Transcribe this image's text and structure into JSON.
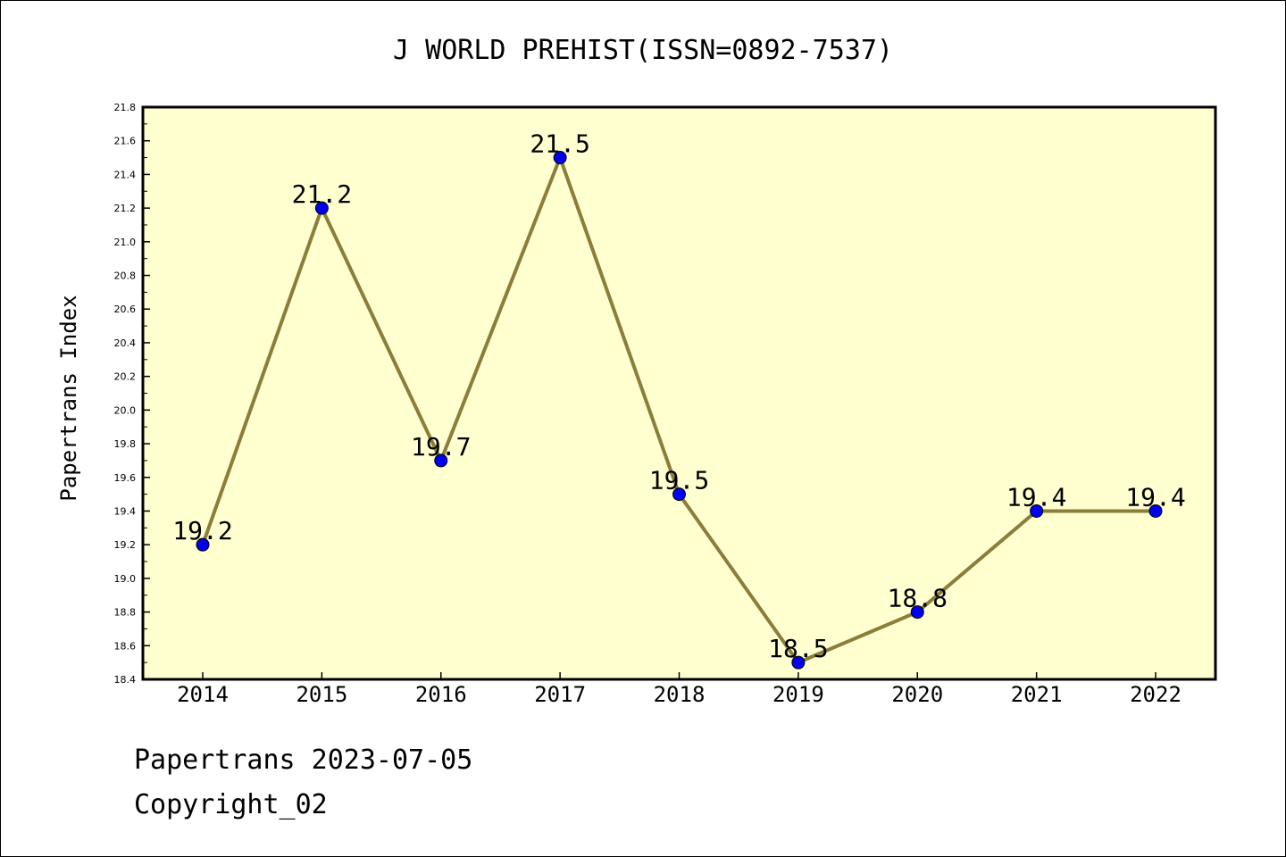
{
  "chart_data": {
    "type": "line",
    "title": "J WORLD PREHIST(ISSN=0892-7537)",
    "ylabel": "Papertrans Index",
    "xlabel": "",
    "x": [
      "2014",
      "2015",
      "2016",
      "2017",
      "2018",
      "2019",
      "2020",
      "2021",
      "2022"
    ],
    "series": [
      {
        "values": [
          19.2,
          21.2,
          19.7,
          21.5,
          19.5,
          18.5,
          18.8,
          19.4,
          19.4
        ],
        "labels": [
          "19.2",
          "21.2",
          "19.7",
          "21.5",
          "19.5",
          "18.5",
          "18.8",
          "19.4",
          "19.4"
        ]
      }
    ],
    "ylim": [
      18.4,
      21.8
    ],
    "yticks": [
      "18.4",
      "18.6",
      "18.8",
      "19.0",
      "19.2",
      "19.4",
      "19.6",
      "19.8",
      "20.0",
      "20.2",
      "20.4",
      "20.6",
      "20.8",
      "21.0",
      "21.2",
      "21.4",
      "21.6",
      "21.8"
    ],
    "grid": false,
    "colors": {
      "plot_background": "#ffffd0",
      "line": "#8b7d3a",
      "marker": "#0000ee"
    }
  },
  "footer": {
    "line1": "Papertrans 2023-07-05",
    "line2": "Copyright_02"
  }
}
